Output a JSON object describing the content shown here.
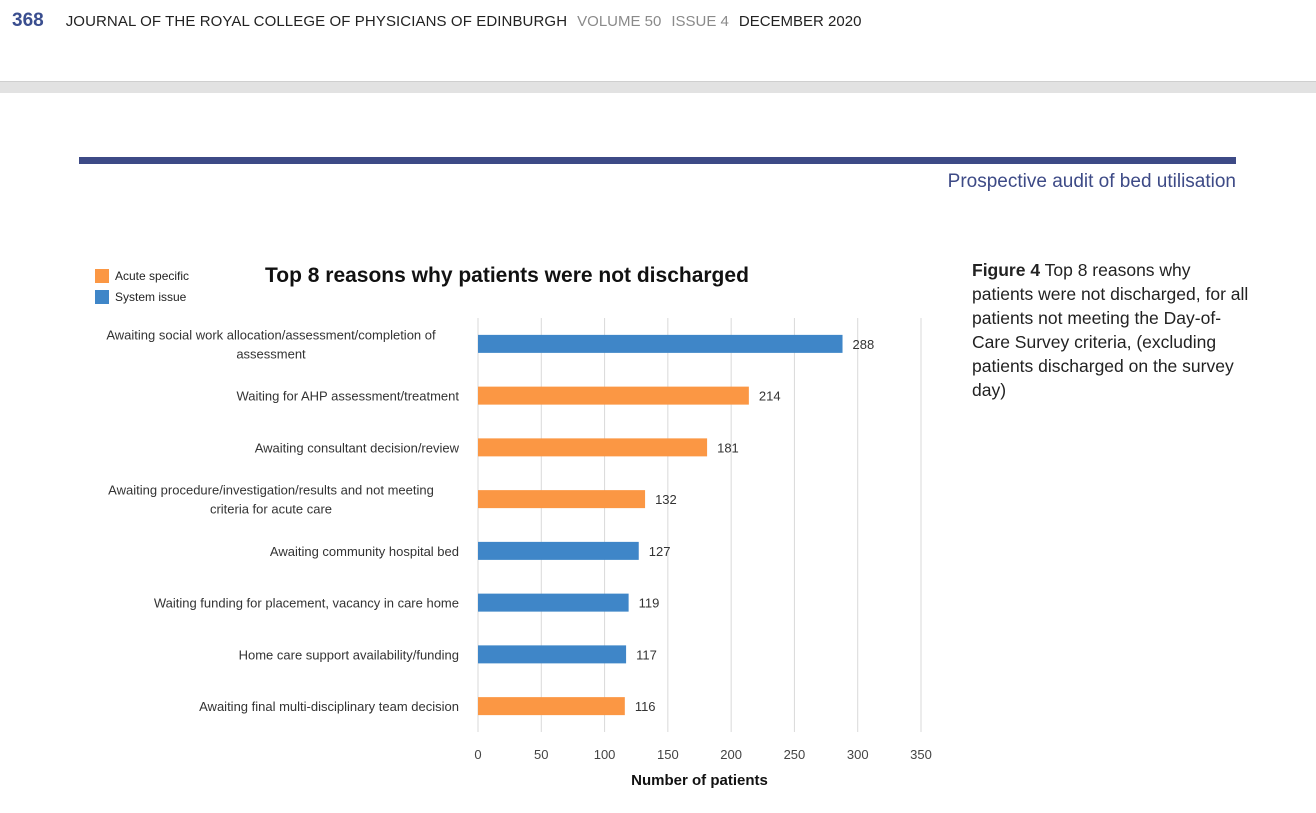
{
  "header": {
    "page_number": "368",
    "journal_title": "JOURNAL OF THE ROYAL COLLEGE OF PHYSICIANS OF EDINBURGH",
    "volume": "VOLUME 50",
    "issue": "ISSUE 4",
    "date": "DECEMBER 2020"
  },
  "section_title": "Prospective audit of bed utilisation",
  "caption": {
    "label": "Figure 4",
    "text": "Top 8 reasons why patients were not discharged, for all patients not meeting the Day-of-Care Survey criteria, (excluding patients discharged on the survey day)"
  },
  "colors": {
    "acute_specific": "#fb9744",
    "system_issue": "#3f86c8",
    "rule": "#3d4a86"
  },
  "chart_data": {
    "type": "bar",
    "orientation": "horizontal",
    "title": "Top 8 reasons why patients were not discharged",
    "xlabel": "Number of patients",
    "ylabel": "",
    "xlim": [
      0,
      350
    ],
    "xticks": [
      0,
      50,
      100,
      150,
      200,
      250,
      300,
      350
    ],
    "grid": true,
    "legend_position": "top-left",
    "legend": [
      {
        "name": "Acute specific",
        "color": "#fb9744"
      },
      {
        "name": "System issue",
        "color": "#3f86c8"
      }
    ],
    "categories": [
      [
        "Awaiting social work allocation/assessment/completion of",
        "assessment"
      ],
      [
        "Waiting for AHP assessment/treatment"
      ],
      [
        "Awaiting consultant decision/review"
      ],
      [
        "Awaiting procedure/investigation/results and not meeting",
        "criteria for acute care"
      ],
      [
        "Awaiting community hospital bed"
      ],
      [
        "Waiting funding for placement, vacancy in care home"
      ],
      [
        "Home care support availability/funding"
      ],
      [
        "Awaiting final multi-disciplinary team decision"
      ]
    ],
    "values": [
      288,
      214,
      181,
      132,
      127,
      119,
      117,
      116
    ],
    "groups": [
      "System issue",
      "Acute specific",
      "Acute specific",
      "Acute specific",
      "System issue",
      "System issue",
      "System issue",
      "Acute specific"
    ]
  }
}
